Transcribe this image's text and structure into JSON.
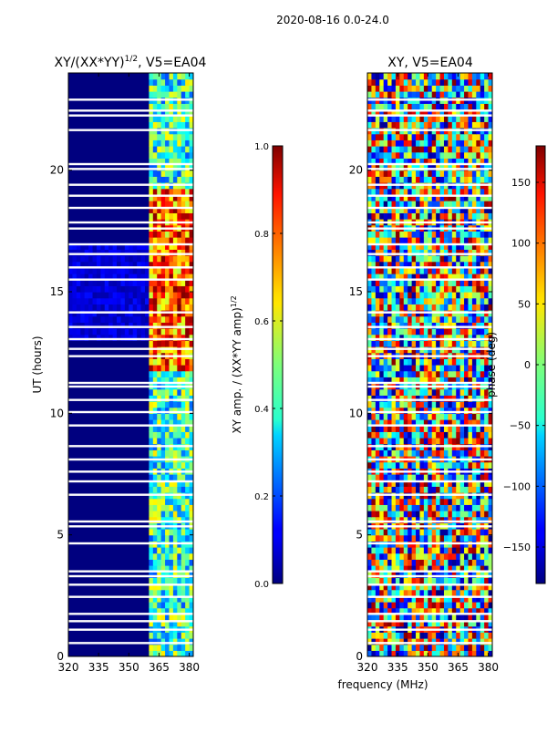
{
  "suptitle": "2020-08-16 0.0-24.0",
  "chart_data": [
    {
      "type": "heatmap",
      "title": "XY/(XX*YY)",
      "title_exponent": "1/2",
      "title_suffix": ", V5=EA04",
      "xlabel": "",
      "ylabel": "UT (hours)",
      "xlim": [
        320,
        382
      ],
      "ylim": [
        0,
        24
      ],
      "xticks": [
        "320",
        "335",
        "350",
        "365",
        "380"
      ],
      "xtick_values": [
        320,
        335,
        350,
        365,
        380
      ],
      "yticks": [
        "0",
        "5",
        "10",
        "15",
        "20"
      ],
      "ytick_values": [
        0,
        5,
        10,
        15,
        20
      ],
      "colorbar": {
        "label": "XY amp. / (XX*YY amp)",
        "label_exponent": "1/2",
        "range": [
          0.0,
          1.0
        ],
        "ticks": [
          "0.0",
          "0.2",
          "0.4",
          "0.6",
          "0.8",
          "1.0"
        ],
        "tick_values": [
          0.0,
          0.2,
          0.4,
          0.6,
          0.8,
          1.0
        ]
      },
      "active_band_mhz": [
        359,
        380
      ],
      "flagged_hours": [
        0.55,
        1.1,
        1.45,
        1.75,
        2.45,
        2.95,
        3.3,
        3.5,
        4.65,
        5.35,
        5.55,
        6.65,
        7.2,
        7.6,
        8.1,
        8.65,
        9.5,
        10.05,
        10.55,
        11.1,
        11.25,
        12.35,
        12.65,
        13.05,
        13.55,
        14.15,
        15.5,
        16.0,
        16.55,
        16.95,
        17.6,
        17.85,
        18.45,
        18.95,
        19.4,
        20.05,
        20.25,
        21.65,
        22.25,
        22.45,
        22.9
      ]
    },
    {
      "type": "heatmap",
      "title": "XY, V5=EA04",
      "xlabel": "frequency (MHz)",
      "ylabel": "",
      "xlim": [
        320,
        382
      ],
      "ylim": [
        0,
        24
      ],
      "xticks": [
        "320",
        "335",
        "350",
        "365",
        "380"
      ],
      "xtick_values": [
        320,
        335,
        350,
        365,
        380
      ],
      "yticks": [
        "0",
        "5",
        "10",
        "15",
        "20"
      ],
      "ytick_values": [
        0,
        5,
        10,
        15,
        20
      ],
      "colorbar": {
        "label": "phase (deg)",
        "range": [
          -180,
          180
        ],
        "ticks": [
          "−150",
          "−100",
          "−50",
          "0",
          "50",
          "100",
          "150"
        ],
        "tick_values": [
          -150,
          -100,
          -50,
          0,
          50,
          100,
          150
        ]
      },
      "flagged_hours": [
        0.55,
        1.1,
        1.45,
        1.75,
        2.45,
        2.95,
        3.3,
        3.5,
        4.65,
        5.35,
        5.55,
        6.65,
        7.2,
        7.6,
        8.1,
        8.65,
        9.5,
        10.05,
        10.55,
        11.1,
        11.25,
        12.35,
        12.65,
        13.05,
        13.55,
        14.15,
        15.5,
        16.0,
        16.55,
        16.95,
        17.6,
        17.85,
        18.45,
        18.95,
        19.4,
        20.05,
        20.25,
        21.65,
        22.25,
        22.45,
        22.9
      ]
    }
  ]
}
